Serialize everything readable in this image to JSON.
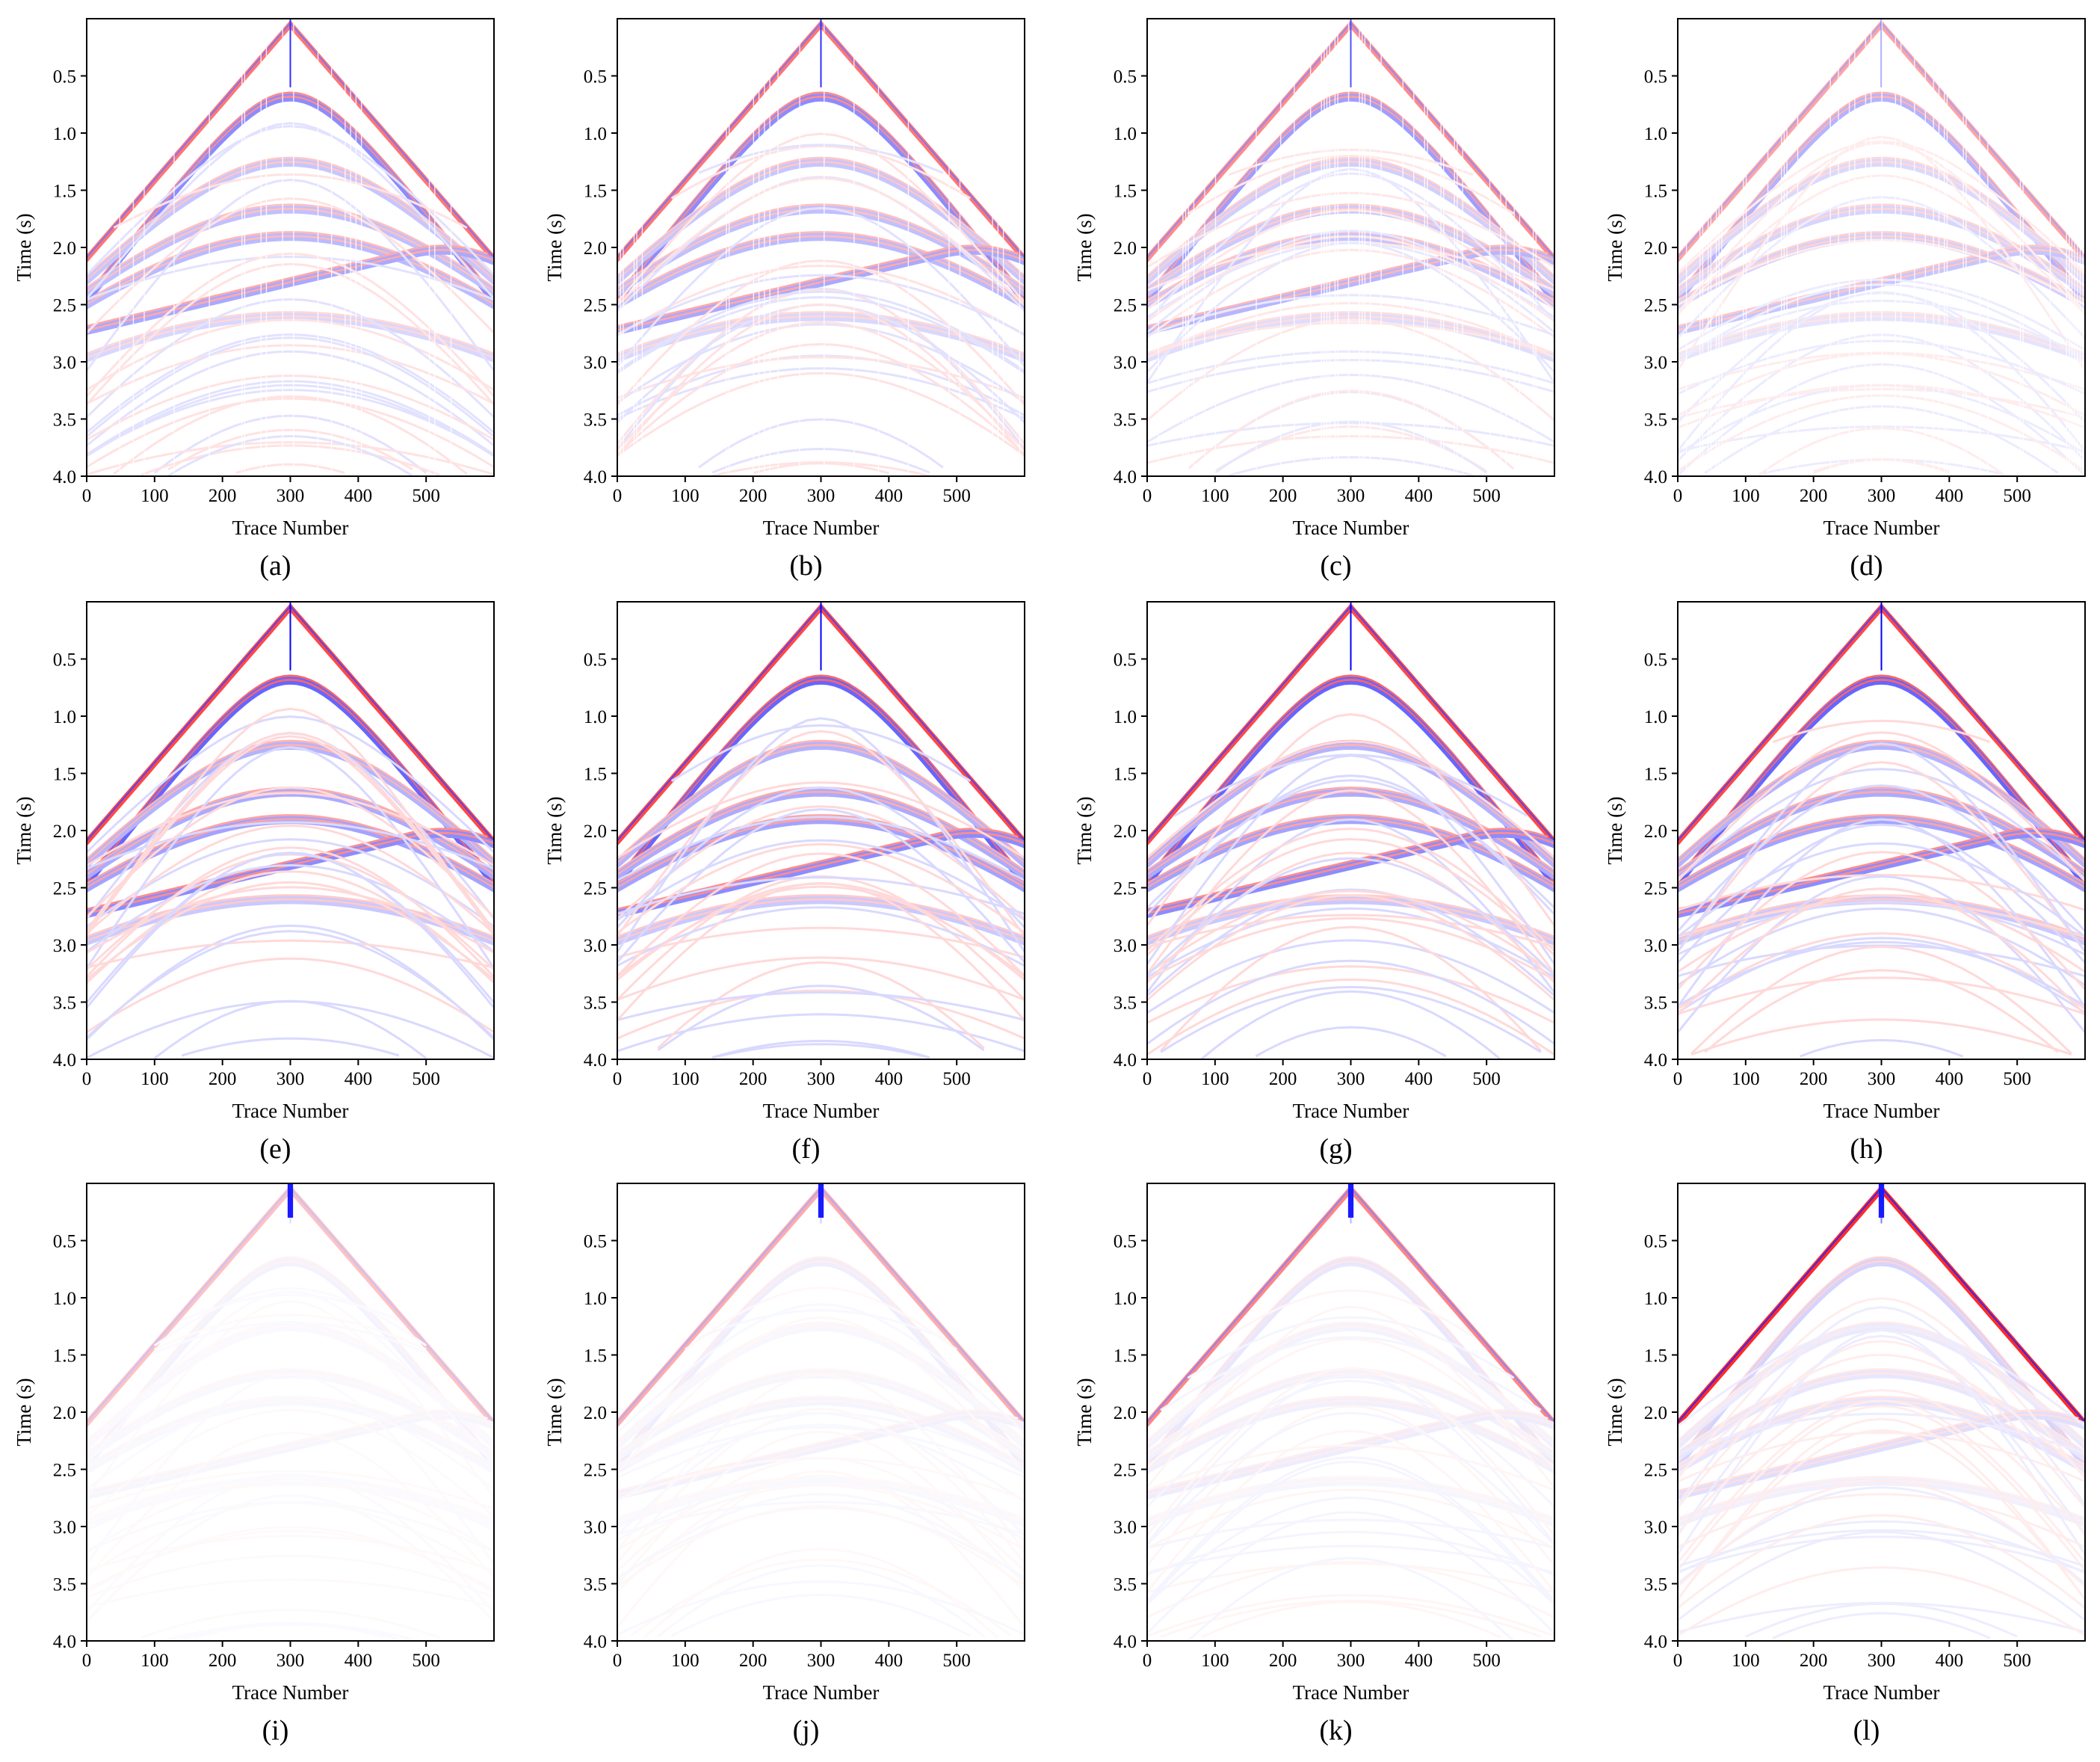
{
  "chart_data": [
    {
      "type": "heatmap",
      "panel_label": "(a)",
      "xlabel": "Trace  Number",
      "ylabel": "Time (s)",
      "xlim": [
        0,
        600
      ],
      "ylim": [
        4.0,
        0.0
      ],
      "xticks": [
        "0",
        "100",
        "200",
        "300",
        "400",
        "500"
      ],
      "yticks": [
        "0.5",
        "1.0",
        "1.5",
        "2.0",
        "2.5",
        "3.0",
        "3.5",
        "4.0"
      ],
      "colormap": [
        "#0000ff",
        "#ffffff",
        "#ff0000"
      ],
      "amplitude": 0.45,
      "style": "decimated",
      "events": [
        {
          "apex_time": 0.05,
          "kind": "direct"
        },
        {
          "apex_time": 0.68,
          "kind": "reflection",
          "strength": 1.0
        },
        {
          "apex_time": 1.25,
          "kind": "reflection",
          "strength": 0.5
        },
        {
          "apex_time": 1.66,
          "kind": "reflection",
          "strength": 0.55
        },
        {
          "apex_time": 1.9,
          "kind": "reflection",
          "strength": 0.6
        },
        {
          "apex_time": 2.05,
          "kind": "dipping",
          "strength": 0.75
        },
        {
          "apex_time": 2.6,
          "kind": "reflection",
          "strength": 0.35
        }
      ]
    },
    {
      "type": "heatmap",
      "panel_label": "(b)",
      "xlabel": "Trace  Number",
      "ylabel": "Time (s)",
      "xlim": [
        0,
        600
      ],
      "ylim": [
        4.0,
        0.0
      ],
      "xticks": [
        "0",
        "100",
        "200",
        "300",
        "400",
        "500"
      ],
      "yticks": [
        "0.5",
        "1.0",
        "1.5",
        "2.0",
        "2.5",
        "3.0",
        "3.5",
        "4.0"
      ],
      "colormap": [
        "#0000ff",
        "#ffffff",
        "#ff0000"
      ],
      "amplitude": 0.45,
      "style": "decimated",
      "events": [
        {
          "apex_time": 0.05,
          "kind": "direct"
        },
        {
          "apex_time": 0.68,
          "kind": "reflection",
          "strength": 1.0
        },
        {
          "apex_time": 1.25,
          "kind": "reflection",
          "strength": 0.5
        },
        {
          "apex_time": 1.66,
          "kind": "reflection",
          "strength": 0.55
        },
        {
          "apex_time": 1.9,
          "kind": "reflection",
          "strength": 0.6
        },
        {
          "apex_time": 2.05,
          "kind": "dipping",
          "strength": 0.75
        },
        {
          "apex_time": 2.6,
          "kind": "reflection",
          "strength": 0.35
        }
      ]
    },
    {
      "type": "heatmap",
      "panel_label": "(c)",
      "xlabel": "Trace  Number",
      "ylabel": "Time (s)",
      "xlim": [
        0,
        600
      ],
      "ylim": [
        4.0,
        0.0
      ],
      "xticks": [
        "0",
        "100",
        "200",
        "300",
        "400",
        "500"
      ],
      "yticks": [
        "0.5",
        "1.0",
        "1.5",
        "2.0",
        "2.5",
        "3.0",
        "3.5",
        "4.0"
      ],
      "colormap": [
        "#0000ff",
        "#ffffff",
        "#ff0000"
      ],
      "amplitude": 0.38,
      "style": "decimated",
      "events": [
        {
          "apex_time": 0.05,
          "kind": "direct"
        },
        {
          "apex_time": 0.68,
          "kind": "reflection",
          "strength": 1.0
        },
        {
          "apex_time": 1.25,
          "kind": "reflection",
          "strength": 0.5
        },
        {
          "apex_time": 1.66,
          "kind": "reflection",
          "strength": 0.55
        },
        {
          "apex_time": 1.9,
          "kind": "reflection",
          "strength": 0.6
        },
        {
          "apex_time": 2.05,
          "kind": "dipping",
          "strength": 0.75
        },
        {
          "apex_time": 2.6,
          "kind": "reflection",
          "strength": 0.35
        }
      ]
    },
    {
      "type": "heatmap",
      "panel_label": "(d)",
      "xlabel": "Trace  Number",
      "ylabel": "Time (s)",
      "xlim": [
        0,
        600
      ],
      "ylim": [
        4.0,
        0.0
      ],
      "xticks": [
        "0",
        "100",
        "200",
        "300",
        "400",
        "500"
      ],
      "yticks": [
        "0.5",
        "1.0",
        "1.5",
        "2.0",
        "2.5",
        "3.0",
        "3.5",
        "4.0"
      ],
      "colormap": [
        "#0000ff",
        "#ffffff",
        "#ff0000"
      ],
      "amplitude": 0.3,
      "style": "decimated",
      "events": [
        {
          "apex_time": 0.05,
          "kind": "direct"
        },
        {
          "apex_time": 0.68,
          "kind": "reflection",
          "strength": 1.0
        },
        {
          "apex_time": 1.25,
          "kind": "reflection",
          "strength": 0.5
        },
        {
          "apex_time": 1.66,
          "kind": "reflection",
          "strength": 0.55
        },
        {
          "apex_time": 1.9,
          "kind": "reflection",
          "strength": 0.6
        },
        {
          "apex_time": 2.05,
          "kind": "dipping",
          "strength": 0.75
        },
        {
          "apex_time": 2.6,
          "kind": "reflection",
          "strength": 0.35
        }
      ]
    },
    {
      "type": "heatmap",
      "panel_label": "(e)",
      "xlabel": "Trace  Number",
      "ylabel": "Time (s)",
      "xlim": [
        0,
        600
      ],
      "ylim": [
        4.0,
        0.0
      ],
      "xticks": [
        "0",
        "100",
        "200",
        "300",
        "400",
        "500"
      ],
      "yticks": [
        "0.5",
        "1.0",
        "1.5",
        "2.0",
        "2.5",
        "3.0",
        "3.5",
        "4.0"
      ],
      "colormap": [
        "#0000ff",
        "#ffffff",
        "#ff0000"
      ],
      "amplitude": 0.6,
      "style": "smooth",
      "events": [
        {
          "apex_time": 0.05,
          "kind": "direct"
        },
        {
          "apex_time": 0.68,
          "kind": "reflection",
          "strength": 1.0
        },
        {
          "apex_time": 1.25,
          "kind": "reflection",
          "strength": 0.5
        },
        {
          "apex_time": 1.66,
          "kind": "reflection",
          "strength": 0.55
        },
        {
          "apex_time": 1.9,
          "kind": "reflection",
          "strength": 0.6
        },
        {
          "apex_time": 2.05,
          "kind": "dipping",
          "strength": 0.75
        },
        {
          "apex_time": 2.6,
          "kind": "reflection",
          "strength": 0.35
        }
      ]
    },
    {
      "type": "heatmap",
      "panel_label": "(f)",
      "xlabel": "Trace  Number",
      "ylabel": "Time (s)",
      "xlim": [
        0,
        600
      ],
      "ylim": [
        4.0,
        0.0
      ],
      "xticks": [
        "0",
        "100",
        "200",
        "300",
        "400",
        "500"
      ],
      "yticks": [
        "0.5",
        "1.0",
        "1.5",
        "2.0",
        "2.5",
        "3.0",
        "3.5",
        "4.0"
      ],
      "colormap": [
        "#0000ff",
        "#ffffff",
        "#ff0000"
      ],
      "amplitude": 0.6,
      "style": "smooth",
      "events": [
        {
          "apex_time": 0.05,
          "kind": "direct"
        },
        {
          "apex_time": 0.68,
          "kind": "reflection",
          "strength": 1.0
        },
        {
          "apex_time": 1.25,
          "kind": "reflection",
          "strength": 0.5
        },
        {
          "apex_time": 1.66,
          "kind": "reflection",
          "strength": 0.55
        },
        {
          "apex_time": 1.9,
          "kind": "reflection",
          "strength": 0.6
        },
        {
          "apex_time": 2.05,
          "kind": "dipping",
          "strength": 0.75
        },
        {
          "apex_time": 2.6,
          "kind": "reflection",
          "strength": 0.35
        }
      ]
    },
    {
      "type": "heatmap",
      "panel_label": "(g)",
      "xlabel": "Trace  Number",
      "ylabel": "Time (s)",
      "xlim": [
        0,
        600
      ],
      "ylim": [
        4.0,
        0.0
      ],
      "xticks": [
        "0",
        "100",
        "200",
        "300",
        "400",
        "500"
      ],
      "yticks": [
        "0.5",
        "1.0",
        "1.5",
        "2.0",
        "2.5",
        "3.0",
        "3.5",
        "4.0"
      ],
      "colormap": [
        "#0000ff",
        "#ffffff",
        "#ff0000"
      ],
      "amplitude": 0.6,
      "style": "smooth",
      "events": [
        {
          "apex_time": 0.05,
          "kind": "direct"
        },
        {
          "apex_time": 0.68,
          "kind": "reflection",
          "strength": 1.0
        },
        {
          "apex_time": 1.25,
          "kind": "reflection",
          "strength": 0.5
        },
        {
          "apex_time": 1.66,
          "kind": "reflection",
          "strength": 0.55
        },
        {
          "apex_time": 1.9,
          "kind": "reflection",
          "strength": 0.6
        },
        {
          "apex_time": 2.05,
          "kind": "dipping",
          "strength": 0.75
        },
        {
          "apex_time": 2.6,
          "kind": "reflection",
          "strength": 0.35
        }
      ]
    },
    {
      "type": "heatmap",
      "panel_label": "(h)",
      "xlabel": "Trace  Number",
      "ylabel": "Time (s)",
      "xlim": [
        0,
        600
      ],
      "ylim": [
        4.0,
        0.0
      ],
      "xticks": [
        "0",
        "100",
        "200",
        "300",
        "400",
        "500"
      ],
      "yticks": [
        "0.5",
        "1.0",
        "1.5",
        "2.0",
        "2.5",
        "3.0",
        "3.5",
        "4.0"
      ],
      "colormap": [
        "#0000ff",
        "#ffffff",
        "#ff0000"
      ],
      "amplitude": 0.6,
      "style": "smooth",
      "events": [
        {
          "apex_time": 0.05,
          "kind": "direct"
        },
        {
          "apex_time": 0.68,
          "kind": "reflection",
          "strength": 1.0
        },
        {
          "apex_time": 1.25,
          "kind": "reflection",
          "strength": 0.5
        },
        {
          "apex_time": 1.66,
          "kind": "reflection",
          "strength": 0.55
        },
        {
          "apex_time": 1.9,
          "kind": "reflection",
          "strength": 0.6
        },
        {
          "apex_time": 2.05,
          "kind": "dipping",
          "strength": 0.75
        },
        {
          "apex_time": 2.6,
          "kind": "reflection",
          "strength": 0.35
        }
      ]
    },
    {
      "type": "heatmap",
      "panel_label": "(i)",
      "xlabel": "Trace  Number",
      "ylabel": "Time (s)",
      "xlim": [
        0,
        600
      ],
      "ylim": [
        4.0,
        0.0
      ],
      "xticks": [
        "0",
        "100",
        "200",
        "300",
        "400",
        "500"
      ],
      "yticks": [
        "0.5",
        "1.0",
        "1.5",
        "2.0",
        "2.5",
        "3.0",
        "3.5",
        "4.0"
      ],
      "colormap": [
        "#0000ff",
        "#ffffff",
        "#ff0000"
      ],
      "amplitude": 0.08,
      "style": "residual",
      "events": [
        {
          "apex_time": 0.05,
          "kind": "direct"
        },
        {
          "apex_time": 0.68,
          "kind": "reflection",
          "strength": 1.0
        },
        {
          "apex_time": 1.25,
          "kind": "reflection",
          "strength": 0.5
        },
        {
          "apex_time": 1.66,
          "kind": "reflection",
          "strength": 0.55
        },
        {
          "apex_time": 1.9,
          "kind": "reflection",
          "strength": 0.6
        },
        {
          "apex_time": 2.05,
          "kind": "dipping",
          "strength": 0.75
        },
        {
          "apex_time": 2.6,
          "kind": "reflection",
          "strength": 0.35
        }
      ]
    },
    {
      "type": "heatmap",
      "panel_label": "(j)",
      "xlabel": "Trace  Number",
      "ylabel": "Time (s)",
      "xlim": [
        0,
        600
      ],
      "ylim": [
        4.0,
        0.0
      ],
      "xticks": [
        "0",
        "100",
        "200",
        "300",
        "400",
        "500"
      ],
      "yticks": [
        "0.5",
        "1.0",
        "1.5",
        "2.0",
        "2.5",
        "3.0",
        "3.5",
        "4.0"
      ],
      "colormap": [
        "#0000ff",
        "#ffffff",
        "#ff0000"
      ],
      "amplitude": 0.11,
      "style": "residual",
      "events": [
        {
          "apex_time": 0.05,
          "kind": "direct"
        },
        {
          "apex_time": 0.68,
          "kind": "reflection",
          "strength": 1.0
        },
        {
          "apex_time": 1.25,
          "kind": "reflection",
          "strength": 0.5
        },
        {
          "apex_time": 1.66,
          "kind": "reflection",
          "strength": 0.55
        },
        {
          "apex_time": 1.9,
          "kind": "reflection",
          "strength": 0.6
        },
        {
          "apex_time": 2.05,
          "kind": "dipping",
          "strength": 0.75
        },
        {
          "apex_time": 2.6,
          "kind": "reflection",
          "strength": 0.35
        }
      ]
    },
    {
      "type": "heatmap",
      "panel_label": "(k)",
      "xlabel": "Trace  Number",
      "ylabel": "Time (s)",
      "xlim": [
        0,
        600
      ],
      "ylim": [
        4.0,
        0.0
      ],
      "xticks": [
        "0",
        "100",
        "200",
        "300",
        "400",
        "500"
      ],
      "yticks": [
        "0.5",
        "1.0",
        "1.5",
        "2.0",
        "2.5",
        "3.0",
        "3.5",
        "4.0"
      ],
      "colormap": [
        "#0000ff",
        "#ffffff",
        "#ff0000"
      ],
      "amplitude": 0.16,
      "style": "residual",
      "events": [
        {
          "apex_time": 0.05,
          "kind": "direct"
        },
        {
          "apex_time": 0.68,
          "kind": "reflection",
          "strength": 1.0
        },
        {
          "apex_time": 1.25,
          "kind": "reflection",
          "strength": 0.5
        },
        {
          "apex_time": 1.66,
          "kind": "reflection",
          "strength": 0.55
        },
        {
          "apex_time": 1.9,
          "kind": "reflection",
          "strength": 0.6
        },
        {
          "apex_time": 2.05,
          "kind": "dipping",
          "strength": 0.75
        },
        {
          "apex_time": 2.6,
          "kind": "reflection",
          "strength": 0.35
        }
      ]
    },
    {
      "type": "heatmap",
      "panel_label": "(l)",
      "xlabel": "Trace  Number",
      "ylabel": "Time (s)",
      "xlim": [
        0,
        600
      ],
      "ylim": [
        4.0,
        0.0
      ],
      "xticks": [
        "0",
        "100",
        "200",
        "300",
        "400",
        "500"
      ],
      "yticks": [
        "0.5",
        "1.0",
        "1.5",
        "2.0",
        "2.5",
        "3.0",
        "3.5",
        "4.0"
      ],
      "colormap": [
        "#0000ff",
        "#ffffff",
        "#ff0000"
      ],
      "amplitude": 0.28,
      "style": "residual",
      "events": [
        {
          "apex_time": 0.05,
          "kind": "direct"
        },
        {
          "apex_time": 0.68,
          "kind": "reflection",
          "strength": 1.0
        },
        {
          "apex_time": 1.25,
          "kind": "reflection",
          "strength": 0.5
        },
        {
          "apex_time": 1.66,
          "kind": "reflection",
          "strength": 0.55
        },
        {
          "apex_time": 1.9,
          "kind": "reflection",
          "strength": 0.6
        },
        {
          "apex_time": 2.05,
          "kind": "dipping",
          "strength": 0.75
        },
        {
          "apex_time": 2.6,
          "kind": "reflection",
          "strength": 0.35
        }
      ]
    }
  ]
}
